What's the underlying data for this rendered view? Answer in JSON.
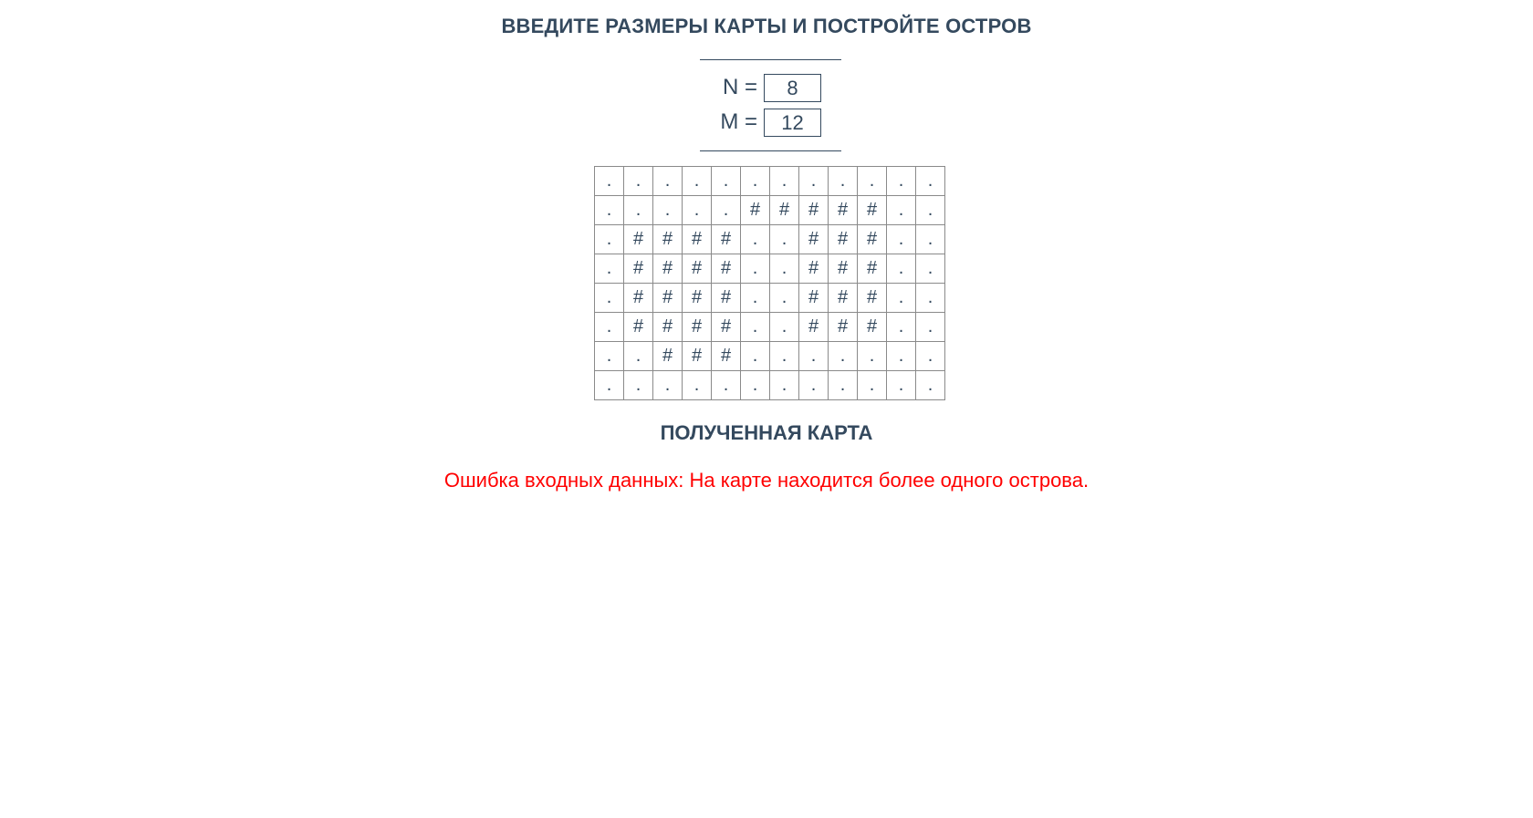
{
  "header": {
    "title": "ВВЕДИТЕ РАЗМЕРЫ КАРТЫ И ПОСТРОЙТЕ ОСТРОВ"
  },
  "inputs": {
    "n_label": "N =",
    "n_value": "8",
    "m_label": "M =",
    "m_value": "12"
  },
  "map": {
    "rows": [
      [
        ".",
        ".",
        ".",
        ".",
        ".",
        ".",
        ".",
        ".",
        ".",
        ".",
        ".",
        "."
      ],
      [
        ".",
        ".",
        ".",
        ".",
        ".",
        "#",
        "#",
        "#",
        "#",
        "#",
        ".",
        "."
      ],
      [
        ".",
        "#",
        "#",
        "#",
        "#",
        ".",
        ".",
        "#",
        "#",
        "#",
        ".",
        "."
      ],
      [
        ".",
        "#",
        "#",
        "#",
        "#",
        ".",
        ".",
        "#",
        "#",
        "#",
        ".",
        "."
      ],
      [
        ".",
        "#",
        "#",
        "#",
        "#",
        ".",
        ".",
        "#",
        "#",
        "#",
        ".",
        "."
      ],
      [
        ".",
        "#",
        "#",
        "#",
        "#",
        ".",
        ".",
        "#",
        "#",
        "#",
        ".",
        "."
      ],
      [
        ".",
        ".",
        "#",
        "#",
        "#",
        ".",
        ".",
        ".",
        ".",
        ".",
        ".",
        "."
      ],
      [
        ".",
        ".",
        ".",
        ".",
        ".",
        ".",
        ".",
        ".",
        ".",
        ".",
        ".",
        "."
      ]
    ]
  },
  "result": {
    "title": "ПОЛУЧЕННАЯ КАРТА",
    "error": "Ошибка входных данных: На карте находится более одного острова."
  },
  "colors": {
    "text": "#34495e",
    "error": "#ff0000",
    "grid_border": "#8a8a8a"
  }
}
